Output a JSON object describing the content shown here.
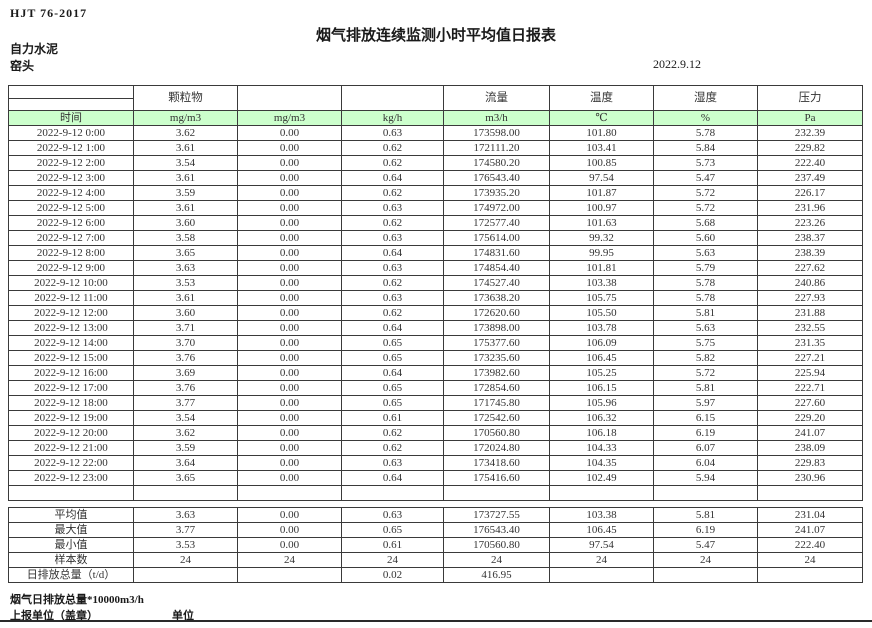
{
  "header": {
    "doc_code": "HJT  76-2017",
    "title": "烟气排放连续监测小时平均值日报表",
    "company": "自力水泥",
    "unit_name": "窑头",
    "date": "2022.9.12"
  },
  "table": {
    "group_headers": [
      "",
      "颗粒物",
      "",
      "",
      "流量",
      "温度",
      "湿度",
      "压力"
    ],
    "unit_row": [
      "时间",
      "mg/m3",
      "mg/m3",
      "kg/h",
      "m3/h",
      "℃",
      "%",
      "Pa"
    ],
    "rows": [
      {
        "time": "2022-9-12 0:00",
        "values": [
          "3.62",
          "0.00",
          "0.63",
          "173598.00",
          "101.80",
          "5.78",
          "232.39"
        ]
      },
      {
        "time": "2022-9-12 1:00",
        "values": [
          "3.61",
          "0.00",
          "0.62",
          "172111.20",
          "103.41",
          "5.84",
          "229.82"
        ]
      },
      {
        "time": "2022-9-12 2:00",
        "values": [
          "3.54",
          "0.00",
          "0.62",
          "174580.20",
          "100.85",
          "5.73",
          "222.40"
        ]
      },
      {
        "time": "2022-9-12 3:00",
        "values": [
          "3.61",
          "0.00",
          "0.64",
          "176543.40",
          "97.54",
          "5.47",
          "237.49"
        ]
      },
      {
        "time": "2022-9-12 4:00",
        "values": [
          "3.59",
          "0.00",
          "0.62",
          "173935.20",
          "101.87",
          "5.72",
          "226.17"
        ]
      },
      {
        "time": "2022-9-12 5:00",
        "values": [
          "3.61",
          "0.00",
          "0.63",
          "174972.00",
          "100.97",
          "5.72",
          "231.96"
        ]
      },
      {
        "time": "2022-9-12 6:00",
        "values": [
          "3.60",
          "0.00",
          "0.62",
          "172577.40",
          "101.63",
          "5.68",
          "223.26"
        ]
      },
      {
        "time": "2022-9-12 7:00",
        "values": [
          "3.58",
          "0.00",
          "0.63",
          "175614.00",
          "99.32",
          "5.60",
          "238.37"
        ]
      },
      {
        "time": "2022-9-12 8:00",
        "values": [
          "3.65",
          "0.00",
          "0.64",
          "174831.60",
          "99.95",
          "5.63",
          "238.39"
        ]
      },
      {
        "time": "2022-9-12 9:00",
        "values": [
          "3.63",
          "0.00",
          "0.63",
          "174854.40",
          "101.81",
          "5.79",
          "227.62"
        ]
      },
      {
        "time": "2022-9-12 10:00",
        "values": [
          "3.53",
          "0.00",
          "0.62",
          "174527.40",
          "103.38",
          "5.78",
          "240.86"
        ]
      },
      {
        "time": "2022-9-12 11:00",
        "values": [
          "3.61",
          "0.00",
          "0.63",
          "173638.20",
          "105.75",
          "5.78",
          "227.93"
        ]
      },
      {
        "time": "2022-9-12 12:00",
        "values": [
          "3.60",
          "0.00",
          "0.62",
          "172620.60",
          "105.50",
          "5.81",
          "231.88"
        ]
      },
      {
        "time": "2022-9-12 13:00",
        "values": [
          "3.71",
          "0.00",
          "0.64",
          "173898.00",
          "103.78",
          "5.63",
          "232.55"
        ]
      },
      {
        "time": "2022-9-12 14:00",
        "values": [
          "3.70",
          "0.00",
          "0.65",
          "175377.60",
          "106.09",
          "5.75",
          "231.35"
        ]
      },
      {
        "time": "2022-9-12 15:00",
        "values": [
          "3.76",
          "0.00",
          "0.65",
          "173235.60",
          "106.45",
          "5.82",
          "227.21"
        ]
      },
      {
        "time": "2022-9-12 16:00",
        "values": [
          "3.69",
          "0.00",
          "0.64",
          "173982.60",
          "105.25",
          "5.72",
          "225.94"
        ]
      },
      {
        "time": "2022-9-12 17:00",
        "values": [
          "3.76",
          "0.00",
          "0.65",
          "172854.60",
          "106.15",
          "5.81",
          "222.71"
        ]
      },
      {
        "time": "2022-9-12 18:00",
        "values": [
          "3.77",
          "0.00",
          "0.65",
          "171745.80",
          "105.96",
          "5.97",
          "227.60"
        ]
      },
      {
        "time": "2022-9-12 19:00",
        "values": [
          "3.54",
          "0.00",
          "0.61",
          "172542.60",
          "106.32",
          "6.15",
          "229.20"
        ]
      },
      {
        "time": "2022-9-12 20:00",
        "values": [
          "3.62",
          "0.00",
          "0.62",
          "170560.80",
          "106.18",
          "6.19",
          "241.07"
        ]
      },
      {
        "time": "2022-9-12 21:00",
        "values": [
          "3.59",
          "0.00",
          "0.62",
          "172024.80",
          "104.33",
          "6.07",
          "238.09"
        ]
      },
      {
        "time": "2022-9-12 22:00",
        "values": [
          "3.64",
          "0.00",
          "0.63",
          "173418.60",
          "104.35",
          "6.04",
          "229.83"
        ]
      },
      {
        "time": "2022-9-12 23:00",
        "values": [
          "3.65",
          "0.00",
          "0.64",
          "175416.60",
          "102.49",
          "5.94",
          "230.96"
        ]
      }
    ],
    "summary_rows": [
      {
        "label": "平均值",
        "values": [
          "3.63",
          "0.00",
          "0.63",
          "173727.55",
          "103.38",
          "5.81",
          "231.04"
        ]
      },
      {
        "label": "最大值",
        "values": [
          "3.77",
          "0.00",
          "0.65",
          "176543.40",
          "106.45",
          "6.19",
          "241.07"
        ]
      },
      {
        "label": "最小值",
        "values": [
          "3.53",
          "0.00",
          "0.61",
          "170560.80",
          "97.54",
          "5.47",
          "222.40"
        ]
      },
      {
        "label": "样本数",
        "values": [
          "24",
          "24",
          "24",
          "24",
          "24",
          "24",
          "24"
        ]
      },
      {
        "label": "日排放总量（t/d）",
        "values": [
          "",
          "",
          "0.02",
          "416.95",
          "",
          "",
          ""
        ]
      }
    ]
  },
  "footer": {
    "note": "烟气日排放总量*10000m3/h",
    "report_unit_label": "上报单位（盖章）",
    "unit_label": "单位"
  },
  "colors": {
    "header_green": "#ccffcc"
  }
}
